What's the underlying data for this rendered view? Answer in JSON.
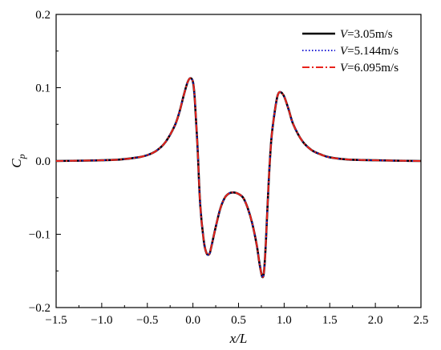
{
  "chart_data": {
    "type": "line",
    "xlabel": "x/L",
    "ylabel": "C_p",
    "xlim": [
      -1.5,
      2.5
    ],
    "ylim": [
      -0.2,
      0.2
    ],
    "xticks": [
      -1.5,
      -1.0,
      -0.5,
      0.0,
      0.5,
      1.0,
      1.5,
      2.0,
      2.5
    ],
    "xtick_labels": [
      "−1.5",
      "−1.0",
      "−0.5",
      "0.0",
      "0.5",
      "1.0",
      "1.5",
      "2.0",
      "2.5"
    ],
    "yticks": [
      -0.2,
      -0.1,
      0.0,
      0.1,
      0.2
    ],
    "ytick_labels": [
      "−0.2",
      "−0.1",
      "0.0",
      "0.1",
      "0.2"
    ],
    "grid": false,
    "legend_position": "top-right",
    "series": [
      {
        "name": "V=3.05m/s",
        "label_var": "V",
        "label_rest": "=3.05m/s",
        "color": "#000000",
        "style": "solid",
        "x": [
          -1.5,
          -1.2,
          -1.0,
          -0.8,
          -0.6,
          -0.5,
          -0.4,
          -0.3,
          -0.2,
          -0.15,
          -0.1,
          -0.06,
          -0.03,
          0.0,
          0.02,
          0.05,
          0.08,
          0.12,
          0.15,
          0.18,
          0.2,
          0.25,
          0.3,
          0.35,
          0.4,
          0.45,
          0.5,
          0.55,
          0.6,
          0.65,
          0.7,
          0.73,
          0.76,
          0.78,
          0.8,
          0.83,
          0.86,
          0.9,
          0.93,
          0.96,
          1.0,
          1.05,
          1.1,
          1.2,
          1.3,
          1.4,
          1.5,
          1.7,
          2.0,
          2.2,
          2.5
        ],
        "y": [
          0.0,
          0.0005,
          0.001,
          0.002,
          0.005,
          0.008,
          0.014,
          0.026,
          0.048,
          0.066,
          0.09,
          0.107,
          0.113,
          0.108,
          0.085,
          0.02,
          -0.06,
          -0.11,
          -0.126,
          -0.127,
          -0.118,
          -0.09,
          -0.065,
          -0.05,
          -0.044,
          -0.043,
          -0.045,
          -0.05,
          -0.064,
          -0.085,
          -0.115,
          -0.14,
          -0.158,
          -0.15,
          -0.11,
          -0.03,
          0.03,
          0.07,
          0.09,
          0.094,
          0.088,
          0.07,
          0.05,
          0.027,
          0.015,
          0.009,
          0.005,
          0.002,
          0.001,
          0.0005,
          0.0
        ]
      },
      {
        "name": "V=5.144m/s",
        "label_var": "V",
        "label_rest": "=5.144m/s",
        "color": "#1f1fd6",
        "style": "dotted",
        "x": [
          -1.5,
          -1.2,
          -1.0,
          -0.8,
          -0.6,
          -0.5,
          -0.4,
          -0.3,
          -0.2,
          -0.15,
          -0.1,
          -0.06,
          -0.03,
          0.0,
          0.02,
          0.05,
          0.08,
          0.12,
          0.15,
          0.18,
          0.2,
          0.25,
          0.3,
          0.35,
          0.4,
          0.45,
          0.5,
          0.55,
          0.6,
          0.65,
          0.7,
          0.73,
          0.76,
          0.78,
          0.8,
          0.83,
          0.86,
          0.9,
          0.93,
          0.96,
          1.0,
          1.05,
          1.1,
          1.2,
          1.3,
          1.4,
          1.5,
          1.7,
          2.0,
          2.2,
          2.5
        ],
        "y": [
          0.0,
          0.0005,
          0.001,
          0.002,
          0.005,
          0.008,
          0.014,
          0.026,
          0.048,
          0.066,
          0.09,
          0.107,
          0.113,
          0.108,
          0.085,
          0.02,
          -0.06,
          -0.11,
          -0.126,
          -0.127,
          -0.118,
          -0.09,
          -0.065,
          -0.05,
          -0.044,
          -0.043,
          -0.045,
          -0.05,
          -0.064,
          -0.085,
          -0.115,
          -0.14,
          -0.158,
          -0.15,
          -0.11,
          -0.03,
          0.03,
          0.07,
          0.09,
          0.094,
          0.088,
          0.07,
          0.05,
          0.027,
          0.015,
          0.009,
          0.005,
          0.002,
          0.001,
          0.0005,
          0.0
        ]
      },
      {
        "name": "V=6.095m/s",
        "label_var": "V",
        "label_rest": "=6.095m/s",
        "color": "#e8231b",
        "style": "dashdot",
        "x": [
          -1.5,
          -1.2,
          -1.0,
          -0.8,
          -0.6,
          -0.5,
          -0.4,
          -0.3,
          -0.2,
          -0.15,
          -0.1,
          -0.06,
          -0.03,
          0.0,
          0.02,
          0.05,
          0.08,
          0.12,
          0.15,
          0.18,
          0.2,
          0.25,
          0.3,
          0.35,
          0.4,
          0.45,
          0.5,
          0.55,
          0.6,
          0.65,
          0.7,
          0.73,
          0.76,
          0.78,
          0.8,
          0.83,
          0.86,
          0.9,
          0.93,
          0.96,
          1.0,
          1.05,
          1.1,
          1.2,
          1.3,
          1.4,
          1.5,
          1.7,
          2.0,
          2.2,
          2.5
        ],
        "y": [
          0.0,
          0.0005,
          0.001,
          0.002,
          0.005,
          0.008,
          0.014,
          0.026,
          0.048,
          0.066,
          0.09,
          0.107,
          0.113,
          0.108,
          0.085,
          0.02,
          -0.06,
          -0.11,
          -0.126,
          -0.127,
          -0.118,
          -0.09,
          -0.065,
          -0.05,
          -0.044,
          -0.043,
          -0.045,
          -0.05,
          -0.064,
          -0.085,
          -0.115,
          -0.14,
          -0.158,
          -0.15,
          -0.11,
          -0.03,
          0.03,
          0.07,
          0.09,
          0.094,
          0.088,
          0.07,
          0.05,
          0.027,
          0.015,
          0.009,
          0.005,
          0.002,
          0.001,
          0.0005,
          0.0
        ]
      }
    ]
  }
}
